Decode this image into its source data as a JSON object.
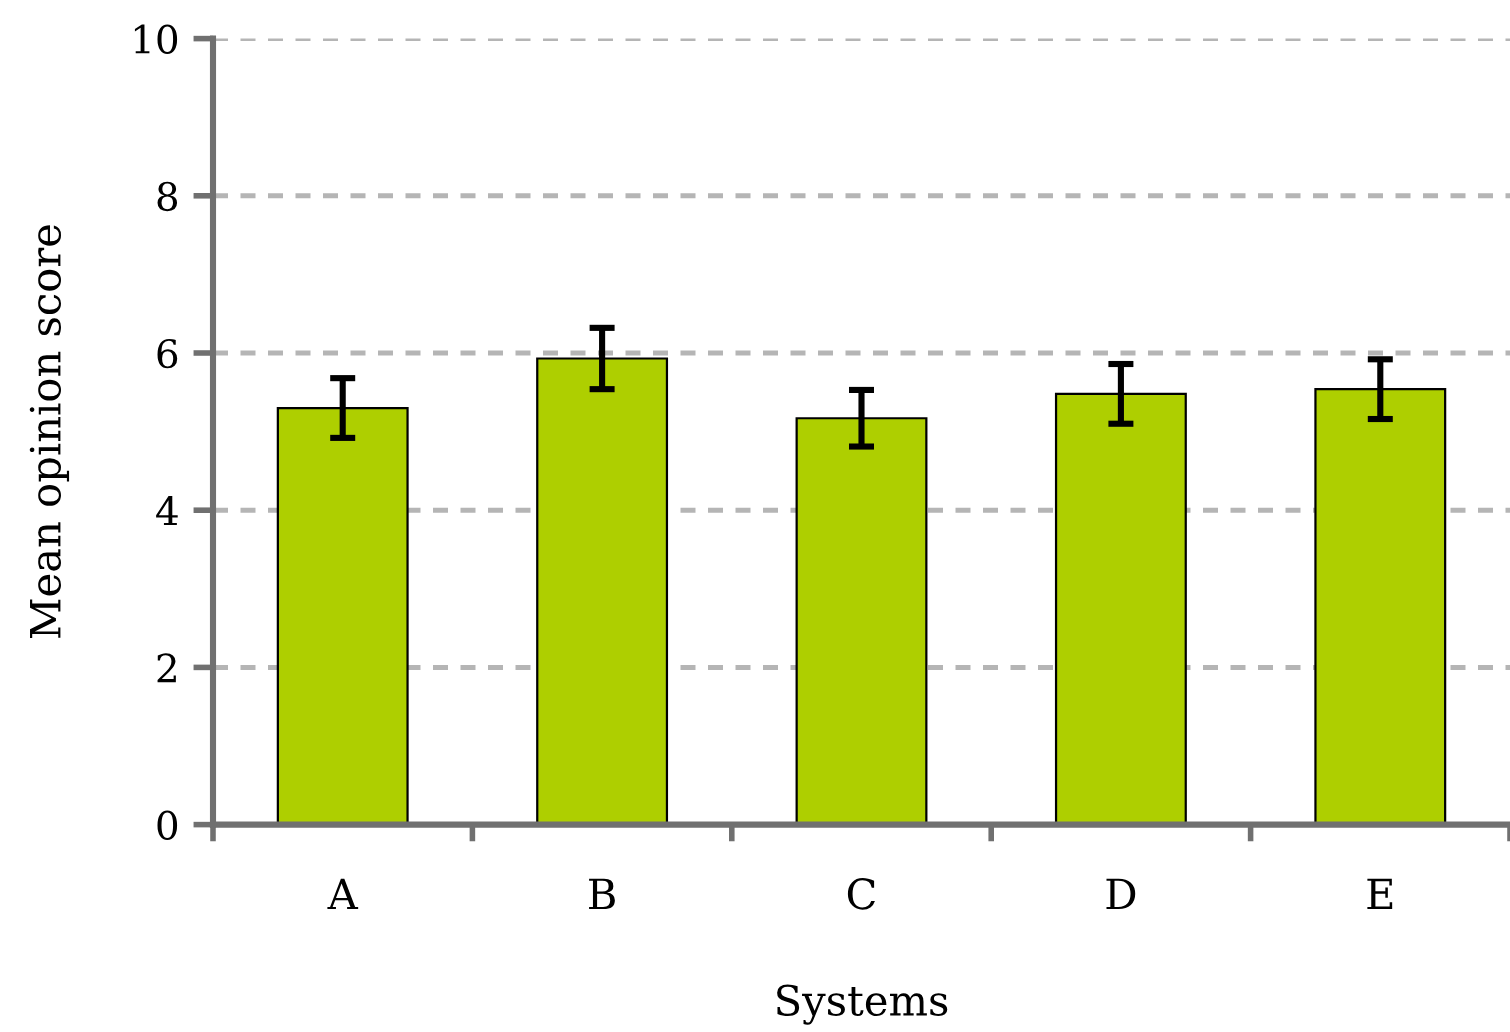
{
  "chart_data": {
    "type": "bar",
    "xlabel": "Systems",
    "ylabel": "Mean opinion score",
    "categories": [
      "A",
      "B",
      "C",
      "D",
      "E"
    ],
    "values": [
      5.3,
      5.93,
      5.17,
      5.48,
      5.54
    ],
    "errors": [
      0.38,
      0.39,
      0.36,
      0.38,
      0.38
    ],
    "color": "#aecf00",
    "ylim": [
      0,
      10
    ],
    "yticks": [
      0,
      2,
      4,
      6,
      8,
      10
    ],
    "grid": "y"
  }
}
